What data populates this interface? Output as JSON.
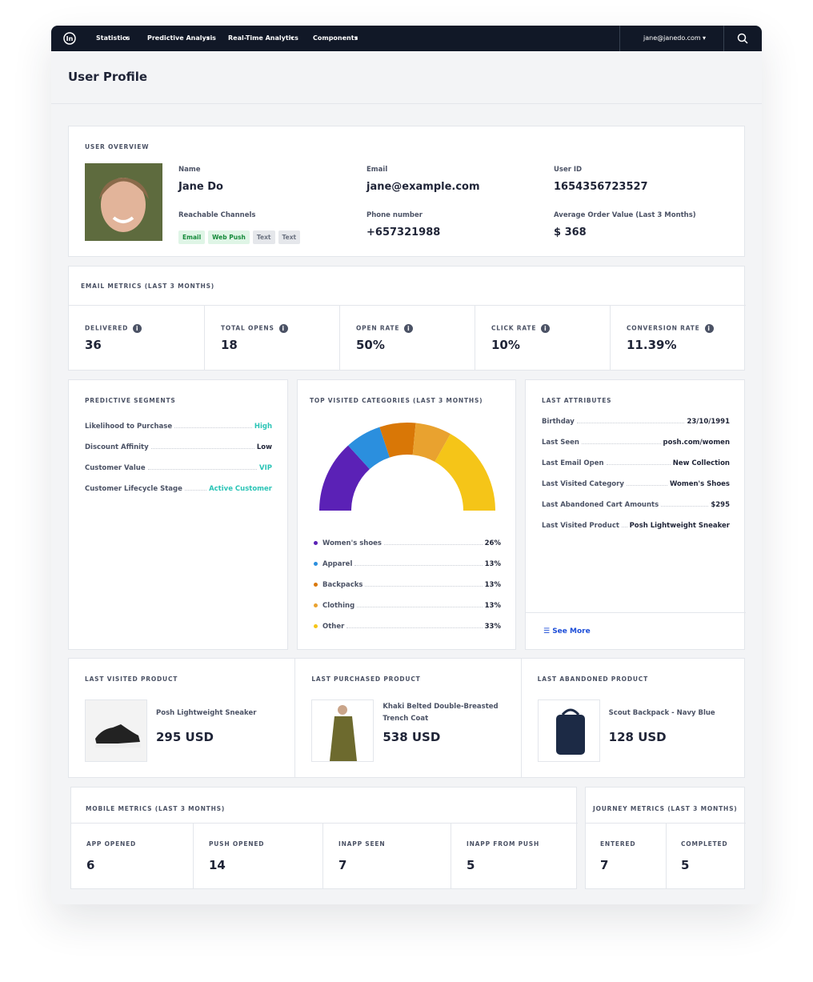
{
  "nav": {
    "items": [
      "Statistics",
      "Predictive Analysis",
      "Real-Time Analytics",
      "Components"
    ],
    "user": "jane@janedo.com"
  },
  "page_title": "User Profile",
  "user_overview": {
    "title": "USER OVERVIEW",
    "fields": [
      {
        "label": "Name",
        "value": "Jane Do"
      },
      {
        "label": "Email",
        "value": "jane@example.com"
      },
      {
        "label": "User ID",
        "value": "1654356723527"
      },
      {
        "label": "Phone number",
        "value": "+657321988"
      },
      {
        "label": "Average Order Value (Last 3 Months)",
        "value": "$ 368"
      }
    ],
    "channels_label": "Reachable Channels",
    "channels": [
      "Email",
      "Web Push",
      "Text",
      "Text"
    ]
  },
  "email_metrics": {
    "title": "EMAIL METRICS (LAST 3 MONTHS)",
    "metrics": [
      {
        "label": "DELIVERED",
        "value": "36"
      },
      {
        "label": "TOTAL OPENS",
        "value": "18"
      },
      {
        "label": "OPEN RATE",
        "value": "50%"
      },
      {
        "label": "CLICK RATE",
        "value": "10%"
      },
      {
        "label": "CONVERSION RATE",
        "value": "11.39%"
      }
    ]
  },
  "predictive_segments": {
    "title": "PREDICTIVE SEGMENTS",
    "rows": [
      [
        "Likelihood to Purchase",
        "High"
      ],
      [
        "Discount Affinity",
        "Low"
      ],
      [
        "Customer Value",
        "VIP"
      ],
      [
        "Customer Lifecycle Stage",
        "Active Customer"
      ]
    ]
  },
  "top_categories": {
    "type": "semi-donut",
    "title": "TOP VISITED CATEGORIES (LAST 3 MONTHS)",
    "categories": [
      "Women's shoes",
      "Apparel",
      "Backpacks",
      "Clothing",
      "Other"
    ],
    "values": [
      26,
      13,
      13,
      13,
      33
    ],
    "value_labels": [
      "26%",
      "13%",
      "13%",
      "13%",
      "33%"
    ],
    "colors": [
      "#5b21b6",
      "#2b8fde",
      "#d97706",
      "#e9a22f",
      "#f5c518"
    ]
  },
  "last_attributes": {
    "title": "LAST ATTRIBUTES",
    "rows": [
      [
        "Birthday",
        "23/10/1991"
      ],
      [
        "Last Seen",
        "posh.com/women"
      ],
      [
        "Last Email Open",
        "New Collection"
      ],
      [
        "Last Visited Category",
        "Women's Shoes"
      ],
      [
        "Last Abandoned Cart Amounts",
        "$295"
      ],
      [
        "Last Visited Product",
        "Posh Lightweight Sneaker"
      ]
    ],
    "see_more": "See More"
  },
  "products": [
    {
      "title": "LAST VISITED PRODUCT",
      "name": "Posh Lightweight Sneaker",
      "price": "295 USD"
    },
    {
      "title": "LAST PURCHASED PRODUCT",
      "name": "Khaki Belted Double-Breasted Trench Coat",
      "price": "538 USD"
    },
    {
      "title": "LAST ABANDONED PRODUCT",
      "name": "Scout Backpack - Navy Blue",
      "price": "128 USD"
    }
  ],
  "mobile_metrics": {
    "title": "MOBILE METRICS (LAST 3 MONTHS)",
    "metrics": [
      {
        "label": "APP OPENED",
        "value": "6"
      },
      {
        "label": "PUSH OPENED",
        "value": "14"
      },
      {
        "label": "INAPP SEEN",
        "value": "7"
      },
      {
        "label": "INAPP FROM PUSH",
        "value": "5"
      }
    ]
  },
  "journey_metrics": {
    "title": "JOURNEY METRICS (LAST 3 MONTHS)",
    "metrics": [
      {
        "label": "ENTERED",
        "value": "7"
      },
      {
        "label": "COMPLETED",
        "value": "5"
      }
    ]
  }
}
